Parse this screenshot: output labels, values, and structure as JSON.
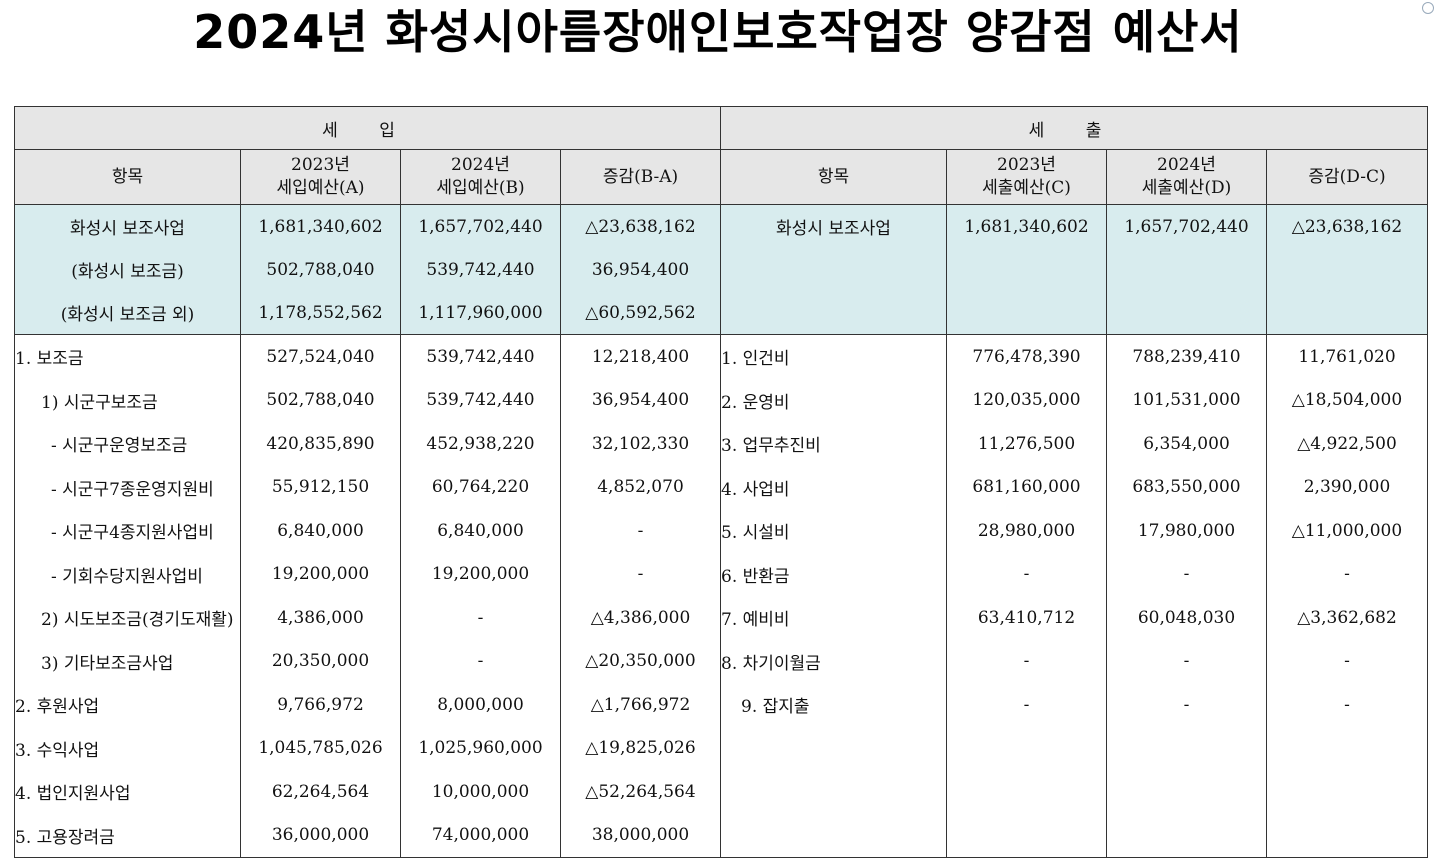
{
  "title": "2024년 화성시아름장애인보호작업장 양감점 예산서",
  "sections": {
    "income": "세 입",
    "expense": "세 출"
  },
  "headers": {
    "income": {
      "item": "항목",
      "prev_l1": "2023년",
      "prev_l2": "세입예산(A)",
      "curr_l1": "2024년",
      "curr_l2": "세입예산(B)",
      "diff": "증감(B-A)"
    },
    "expense": {
      "item": "항목",
      "prev_l1": "2023년",
      "prev_l2": "세출예산(C)",
      "curr_l1": "2024년",
      "curr_l2": "세출예산(D)",
      "diff": "증감(D-C)"
    }
  },
  "summary_rows": [
    {
      "income": [
        "화성시 보조사업",
        "1,681,340,602",
        "1,657,702,440",
        "△23,638,162"
      ],
      "expense": [
        "화성시 보조사업",
        "1,681,340,602",
        "1,657,702,440",
        "△23,638,162"
      ]
    },
    {
      "income": [
        "(화성시 보조금)",
        "502,788,040",
        "539,742,440",
        "36,954,400"
      ],
      "expense": [
        "",
        "",
        "",
        ""
      ]
    },
    {
      "income": [
        "(화성시 보조금 외)",
        "1,178,552,562",
        "1,117,960,000",
        "△60,592,562"
      ],
      "expense": [
        "",
        "",
        "",
        ""
      ]
    }
  ],
  "body_rows": [
    {
      "income": [
        "1. 보조금",
        "527,524,040",
        "539,742,440",
        "12,218,400"
      ],
      "expense": [
        "1. 인건비",
        "776,478,390",
        "788,239,410",
        "11,761,020"
      ]
    },
    {
      "income": [
        "1) 시군구보조금",
        "502,788,040",
        "539,742,440",
        "36,954,400"
      ],
      "expense": [
        "2. 운영비",
        "120,035,000",
        "101,531,000",
        "△18,504,000"
      ]
    },
    {
      "income": [
        "- 시군구운영보조금",
        "420,835,890",
        "452,938,220",
        "32,102,330"
      ],
      "expense": [
        "3. 업무추진비",
        "11,276,500",
        "6,354,000",
        "△4,922,500"
      ]
    },
    {
      "income": [
        "- 시군구7종운영지원비",
        "55,912,150",
        "60,764,220",
        "4,852,070"
      ],
      "expense": [
        "4. 사업비",
        "681,160,000",
        "683,550,000",
        "2,390,000"
      ]
    },
    {
      "income": [
        "- 시군구4종지원사업비",
        "6,840,000",
        "6,840,000",
        "-"
      ],
      "expense": [
        "5. 시설비",
        "28,980,000",
        "17,980,000",
        "△11,000,000"
      ]
    },
    {
      "income": [
        "- 기회수당지원사업비",
        "19,200,000",
        "19,200,000",
        "-"
      ],
      "expense": [
        "6. 반환금",
        "-",
        "-",
        "-"
      ]
    },
    {
      "income": [
        "2) 시도보조금(경기도재활)",
        "4,386,000",
        "-",
        "△4,386,000"
      ],
      "expense": [
        "7. 예비비",
        "63,410,712",
        "60,048,030",
        "△3,362,682"
      ]
    },
    {
      "income": [
        "3) 기타보조금사업",
        "20,350,000",
        "-",
        "△20,350,000"
      ],
      "expense": [
        "8. 차기이월금",
        "-",
        "-",
        "-"
      ]
    },
    {
      "income": [
        "2. 후원사업",
        "9,766,972",
        "8,000,000",
        "△1,766,972"
      ],
      "expense": [
        "9. 잡지출",
        "-",
        "-",
        "-"
      ]
    },
    {
      "income": [
        "3. 수익사업",
        "1,045,785,026",
        "1,025,960,000",
        "△19,825,026"
      ],
      "expense": [
        "",
        "",
        "",
        ""
      ]
    },
    {
      "income": [
        "4. 법인지원사업",
        "62,264,564",
        "10,000,000",
        "△52,264,564"
      ],
      "expense": [
        "",
        "",
        "",
        ""
      ]
    },
    {
      "income": [
        "5. 고용장려금",
        "36,000,000",
        "74,000,000",
        "38,000,000"
      ],
      "expense": [
        "",
        "",
        "",
        ""
      ]
    }
  ]
}
